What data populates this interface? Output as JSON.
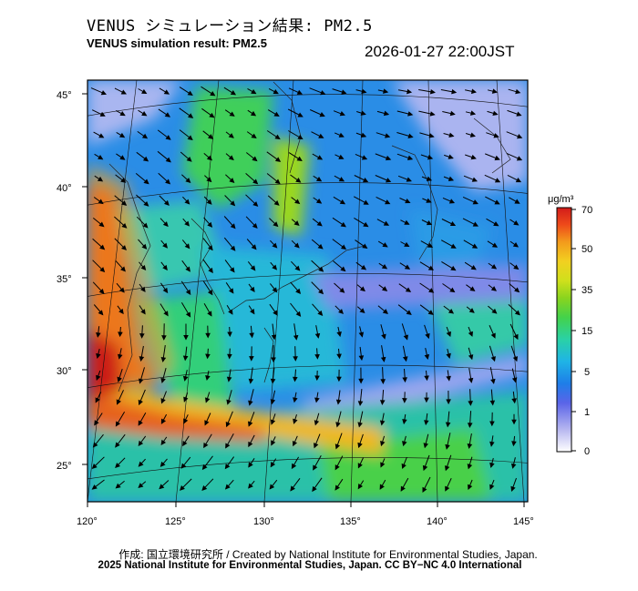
{
  "title_jp": "VENUS シミュレーション結果: PM2.5",
  "title_en": "VENUS simulation result: PM2.5",
  "timestamp": "2026-01-27 22:00JST",
  "lon_ticks": [
    "120°",
    "125°",
    "130°",
    "135°",
    "140°",
    "145°"
  ],
  "lat_ticks": [
    "45°",
    "40°",
    "35°",
    "30°",
    "25°"
  ],
  "colorbar": {
    "unit": "μg/m³",
    "labels": [
      "70",
      "50",
      "35",
      "15",
      "5",
      "1",
      "0"
    ],
    "colors": [
      "#ffffff",
      "#b7b7f0",
      "#5a64e8",
      "#1e7ee8",
      "#1fb4e6",
      "#2ad1a6",
      "#43d24b",
      "#8ad41e",
      "#cfe01c",
      "#f2d020",
      "#f39a1c",
      "#ee4a1a",
      "#d21c1a"
    ]
  },
  "footer_credit": "作成: 国立環境研究所 / Created by National Institute for Environmental Studies, Japan.",
  "footer_license": "2025 National Institute for Environmental Studies, Japan. CC BY−NC 4.0 International"
}
